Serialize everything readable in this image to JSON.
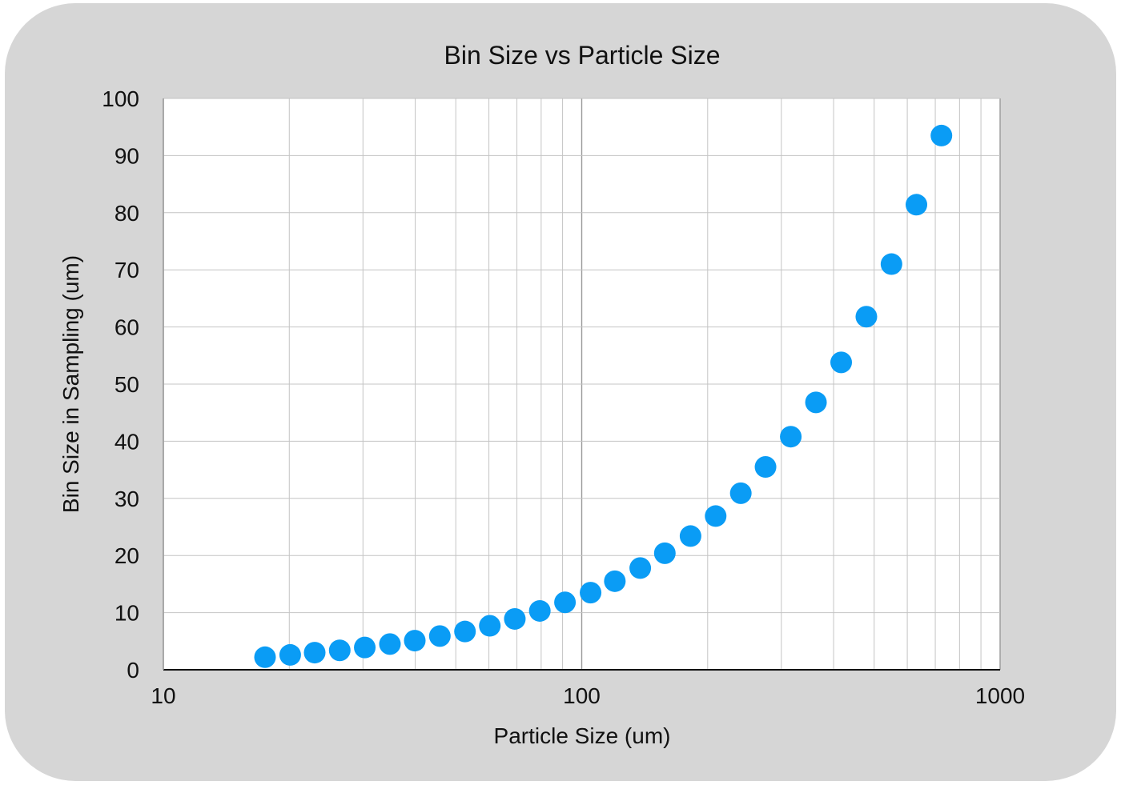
{
  "chart_data": {
    "type": "scatter",
    "title": "Bin Size vs Particle Size",
    "xlabel": "Particle Size (um)",
    "ylabel": "Bin Size in Sampling (um)",
    "x_scale": "log",
    "xlim": [
      10,
      1000
    ],
    "ylim": [
      0,
      100
    ],
    "x_ticks": [
      10,
      100,
      1000
    ],
    "x_tick_labels": [
      "10",
      "100",
      "1000"
    ],
    "y_ticks": [
      0,
      10,
      20,
      30,
      40,
      50,
      60,
      70,
      80,
      90,
      100
    ],
    "y_tick_labels": [
      "0",
      "10",
      "20",
      "30",
      "40",
      "50",
      "60",
      "70",
      "80",
      "90",
      "100"
    ],
    "grid": true,
    "legend": "none",
    "point_color": "#0a9cf5",
    "points": [
      {
        "x": 17.5,
        "y": 2.2
      },
      {
        "x": 20.1,
        "y": 2.6
      },
      {
        "x": 23.0,
        "y": 3.0
      },
      {
        "x": 26.4,
        "y": 3.4
      },
      {
        "x": 30.3,
        "y": 3.9
      },
      {
        "x": 34.8,
        "y": 4.5
      },
      {
        "x": 39.9,
        "y": 5.1
      },
      {
        "x": 45.8,
        "y": 5.9
      },
      {
        "x": 52.6,
        "y": 6.7
      },
      {
        "x": 60.3,
        "y": 7.7
      },
      {
        "x": 69.2,
        "y": 8.9
      },
      {
        "x": 79.4,
        "y": 10.3
      },
      {
        "x": 91.2,
        "y": 11.8
      },
      {
        "x": 105,
        "y": 13.5
      },
      {
        "x": 120,
        "y": 15.5
      },
      {
        "x": 138,
        "y": 17.8
      },
      {
        "x": 158,
        "y": 20.4
      },
      {
        "x": 182,
        "y": 23.4
      },
      {
        "x": 209,
        "y": 26.9
      },
      {
        "x": 240,
        "y": 30.9
      },
      {
        "x": 275,
        "y": 35.5
      },
      {
        "x": 316,
        "y": 40.8
      },
      {
        "x": 363,
        "y": 46.8
      },
      {
        "x": 417,
        "y": 53.8
      },
      {
        "x": 479,
        "y": 61.8
      },
      {
        "x": 550,
        "y": 71.0
      },
      {
        "x": 631,
        "y": 81.4
      },
      {
        "x": 724,
        "y": 93.5
      }
    ]
  }
}
